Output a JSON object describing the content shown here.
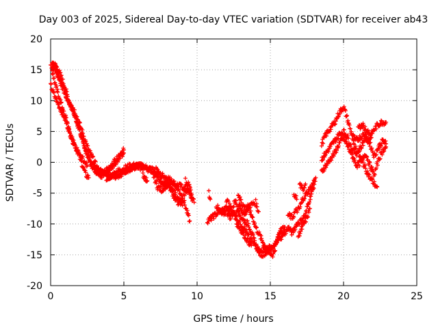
{
  "chart_data": {
    "type": "scatter",
    "title": "Day 003 of 2025, Sidereal Day-to-day VTEC variation (SDTVAR) for receiver ab43",
    "xlabel": "GPS time / hours",
    "ylabel": "SDTVAR / TECUs",
    "xlim": [
      0,
      25
    ],
    "ylim": [
      -20,
      20
    ],
    "xticks": [
      0,
      5,
      10,
      15,
      20,
      25
    ],
    "yticks": [
      -20,
      -15,
      -10,
      -5,
      0,
      5,
      10,
      15,
      20
    ],
    "grid": true,
    "marker": "+",
    "series": [
      {
        "name": "SDTVAR",
        "color": "#ff0000",
        "tracks": [
          [
            [
              0.0,
              15.8
            ],
            [
              0.3,
              15.0
            ],
            [
              0.6,
              13.5
            ],
            [
              0.9,
              11.5
            ],
            [
              1.2,
              10.0
            ],
            [
              1.5,
              8.5
            ],
            [
              1.8,
              6.5
            ],
            [
              2.1,
              4.0
            ],
            [
              2.4,
              2.0
            ],
            [
              2.7,
              0.5
            ],
            [
              3.0,
              -1.0
            ],
            [
              3.5,
              -1.5
            ],
            [
              4.0,
              -2.0
            ],
            [
              4.5,
              -2.0
            ],
            [
              5.0,
              -1.5
            ],
            [
              5.5,
              -1.0
            ],
            [
              6.0,
              -0.5
            ],
            [
              6.5,
              -1.0
            ],
            [
              7.0,
              -1.5
            ],
            [
              7.5,
              -2.0
            ],
            [
              8.0,
              -2.5
            ],
            [
              8.5,
              -3.5
            ],
            [
              9.0,
              -4.0
            ],
            [
              9.5,
              -5.0
            ],
            [
              9.7,
              -6.0
            ]
          ],
          [
            [
              0.1,
              16.3
            ],
            [
              0.4,
              15.5
            ],
            [
              0.7,
              14.0
            ],
            [
              1.0,
              12.0
            ],
            [
              1.3,
              9.5
            ],
            [
              1.6,
              8.0
            ],
            [
              1.9,
              6.0
            ],
            [
              2.2,
              3.5
            ],
            [
              2.5,
              1.0
            ],
            [
              2.8,
              -0.5
            ],
            [
              3.1,
              -1.5
            ],
            [
              3.6,
              -2.0
            ],
            [
              4.1,
              -1.0
            ],
            [
              4.6,
              0.5
            ],
            [
              5.0,
              2.0
            ]
          ],
          [
            [
              0.0,
              12.5
            ],
            [
              0.3,
              10.5
            ],
            [
              0.6,
              9.0
            ],
            [
              0.9,
              7.5
            ],
            [
              1.2,
              5.5
            ],
            [
              1.5,
              3.5
            ],
            [
              1.8,
              2.0
            ],
            [
              2.1,
              0.0
            ],
            [
              2.4,
              -2.0
            ],
            [
              2.6,
              -2.5
            ]
          ],
          [
            [
              0.2,
              16.0
            ],
            [
              0.5,
              14.5
            ],
            [
              0.8,
              12.5
            ],
            [
              1.1,
              10.5
            ],
            [
              1.4,
              9.5
            ],
            [
              1.7,
              8.0
            ],
            [
              2.0,
              6.0
            ],
            [
              2.3,
              4.0
            ],
            [
              2.5,
              2.5
            ],
            [
              2.7,
              1.5
            ],
            [
              3.0,
              0.0
            ],
            [
              3.3,
              -1.5
            ],
            [
              3.5,
              -2.5
            ]
          ],
          [
            [
              4.0,
              -2.5
            ],
            [
              4.5,
              -1.5
            ],
            [
              5.0,
              -1.0
            ],
            [
              5.5,
              -0.5
            ],
            [
              6.0,
              -0.5
            ],
            [
              6.5,
              -0.8
            ],
            [
              7.0,
              -1.2
            ],
            [
              7.4,
              -3.0
            ],
            [
              7.8,
              -3.5
            ],
            [
              8.2,
              -3.0
            ],
            [
              8.6,
              -4.0
            ],
            [
              9.0,
              -5.5
            ],
            [
              9.3,
              -8.0
            ],
            [
              9.5,
              -9.5
            ]
          ],
          [
            [
              7.2,
              -1.0
            ],
            [
              7.5,
              -2.5
            ],
            [
              7.8,
              -4.0
            ],
            [
              8.1,
              -3.5
            ],
            [
              8.4,
              -5.5
            ],
            [
              8.7,
              -6.5
            ],
            [
              9.0,
              -6.0
            ],
            [
              9.4,
              -3.5
            ],
            [
              9.6,
              -5.0
            ]
          ],
          [
            [
              7.0,
              -2.0
            ],
            [
              7.3,
              -4.0
            ],
            [
              7.6,
              -4.5
            ],
            [
              7.9,
              -3.5
            ],
            [
              8.2,
              -4.5
            ],
            [
              8.5,
              -5.0
            ],
            [
              8.8,
              -6.5
            ],
            [
              9.0,
              -7.0
            ]
          ],
          [
            [
              9.2,
              -3.0
            ],
            [
              9.4,
              -4.5
            ],
            [
              9.6,
              -5.5
            ],
            [
              9.8,
              -6.5
            ]
          ],
          [
            [
              6.3,
              -2.0
            ],
            [
              6.6,
              -3.0
            ]
          ],
          [
            [
              10.8,
              -5.0
            ],
            [
              10.9,
              -6.0
            ]
          ],
          [
            [
              10.7,
              -9.5
            ],
            [
              11.0,
              -9.0
            ],
            [
              11.5,
              -8.0
            ],
            [
              12.0,
              -7.5
            ],
            [
              12.5,
              -8.5
            ],
            [
              13.0,
              -10.0
            ],
            [
              13.3,
              -11.0
            ],
            [
              13.6,
              -12.5
            ],
            [
              14.0,
              -13.5
            ],
            [
              14.3,
              -14.5
            ],
            [
              14.6,
              -14.0
            ],
            [
              15.0,
              -14.5
            ],
            [
              15.4,
              -13.0
            ],
            [
              15.7,
              -11.0
            ],
            [
              16.0,
              -10.5
            ]
          ],
          [
            [
              11.3,
              -7.0
            ],
            [
              11.7,
              -8.5
            ],
            [
              12.0,
              -8.0
            ],
            [
              12.3,
              -9.0
            ],
            [
              12.6,
              -6.0
            ],
            [
              12.9,
              -8.5
            ],
            [
              13.2,
              -9.5
            ],
            [
              13.5,
              -10.0
            ],
            [
              13.8,
              -12.0
            ],
            [
              14.1,
              -14.0
            ],
            [
              14.4,
              -15.0
            ],
            [
              14.8,
              -14.5
            ],
            [
              15.2,
              -15.0
            ],
            [
              15.5,
              -12.5
            ],
            [
              15.8,
              -12.0
            ]
          ],
          [
            [
              12.0,
              -6.0
            ],
            [
              12.3,
              -7.5
            ],
            [
              12.6,
              -8.5
            ],
            [
              12.9,
              -7.0
            ],
            [
              13.2,
              -8.5
            ],
            [
              13.5,
              -7.5
            ],
            [
              13.8,
              -9.0
            ],
            [
              14.0,
              -10.5
            ],
            [
              14.3,
              -12.0
            ],
            [
              14.6,
              -13.5
            ],
            [
              15.0,
              -14.0
            ],
            [
              15.3,
              -13.5
            ],
            [
              15.6,
              -12.0
            ],
            [
              16.0,
              -11.5
            ],
            [
              16.2,
              -10.5
            ]
          ],
          [
            [
              12.8,
              -5.0
            ],
            [
              13.0,
              -6.5
            ],
            [
              13.3,
              -7.5
            ],
            [
              13.6,
              -7.0
            ],
            [
              14.0,
              -6.5
            ],
            [
              14.2,
              -8.0
            ]
          ],
          [
            [
              12.7,
              -10.0
            ],
            [
              13.0,
              -11.0
            ],
            [
              13.4,
              -12.5
            ],
            [
              13.7,
              -13.5
            ]
          ],
          [
            [
              16.2,
              -8.5
            ],
            [
              16.5,
              -9.0
            ],
            [
              16.7,
              -8.0
            ],
            [
              17.0,
              -7.5
            ],
            [
              17.2,
              -6.0
            ],
            [
              17.5,
              -5.0
            ],
            [
              17.8,
              -4.0
            ],
            [
              18.0,
              -3.0
            ]
          ],
          [
            [
              16.2,
              -10.5
            ],
            [
              16.5,
              -11.5
            ],
            [
              16.8,
              -10.0
            ],
            [
              17.1,
              -9.5
            ],
            [
              17.4,
              -8.5
            ],
            [
              17.6,
              -6.5
            ],
            [
              17.9,
              -4.5
            ],
            [
              18.1,
              -2.5
            ]
          ],
          [
            [
              16.9,
              -12.0
            ],
            [
              17.1,
              -11.0
            ],
            [
              17.3,
              -10.0
            ],
            [
              17.5,
              -9.0
            ],
            [
              17.7,
              -7.5
            ]
          ],
          [
            [
              17.0,
              -3.5
            ],
            [
              17.2,
              -4.5
            ],
            [
              17.4,
              -3.5
            ]
          ],
          [
            [
              16.6,
              -5.0
            ],
            [
              16.8,
              -6.0
            ]
          ],
          [
            [
              18.5,
              3.0
            ],
            [
              18.8,
              4.5
            ],
            [
              19.1,
              5.5
            ],
            [
              19.4,
              6.5
            ],
            [
              19.7,
              8.0
            ],
            [
              20.0,
              9.0
            ],
            [
              20.2,
              7.5
            ],
            [
              20.5,
              5.0
            ],
            [
              20.8,
              3.5
            ],
            [
              21.1,
              4.0
            ],
            [
              21.4,
              4.5
            ],
            [
              21.7,
              3.5
            ],
            [
              22.0,
              5.0
            ],
            [
              22.3,
              6.0
            ],
            [
              22.6,
              6.5
            ],
            [
              22.9,
              6.5
            ]
          ],
          [
            [
              18.5,
              0.5
            ],
            [
              18.8,
              1.5
            ],
            [
              19.1,
              2.5
            ],
            [
              19.4,
              3.5
            ],
            [
              19.7,
              4.5
            ],
            [
              20.0,
              5.0
            ],
            [
              20.3,
              4.0
            ],
            [
              20.6,
              2.0
            ],
            [
              20.9,
              1.5
            ],
            [
              21.2,
              2.5
            ],
            [
              21.5,
              4.0
            ],
            [
              21.8,
              3.0
            ],
            [
              22.1,
              1.0
            ],
            [
              22.4,
              2.5
            ],
            [
              22.7,
              3.5
            ],
            [
              22.9,
              3.0
            ]
          ],
          [
            [
              18.5,
              -1.5
            ],
            [
              18.8,
              -0.5
            ],
            [
              19.1,
              0.5
            ],
            [
              19.4,
              1.5
            ],
            [
              19.7,
              3.0
            ],
            [
              20.0,
              4.0
            ],
            [
              20.3,
              2.5
            ],
            [
              20.6,
              1.0
            ],
            [
              20.9,
              -0.5
            ],
            [
              21.2,
              0.0
            ],
            [
              21.5,
              1.5
            ],
            [
              21.8,
              -0.5
            ],
            [
              22.1,
              -2.0
            ],
            [
              22.4,
              0.5
            ],
            [
              22.7,
              2.0
            ],
            [
              22.9,
              2.5
            ]
          ],
          [
            [
              20.6,
              3.5
            ],
            [
              20.9,
              2.0
            ],
            [
              21.2,
              0.5
            ],
            [
              21.5,
              -1.0
            ],
            [
              21.8,
              -2.5
            ],
            [
              22.1,
              -3.5
            ],
            [
              22.3,
              -4.0
            ]
          ],
          [
            [
              21.0,
              5.5
            ],
            [
              21.3,
              6.0
            ],
            [
              21.6,
              5.0
            ],
            [
              21.9,
              4.0
            ]
          ],
          [
            [
              0.1,
              14.5
            ],
            [
              0.4,
              12.0
            ],
            [
              0.7,
              9.5
            ],
            [
              1.0,
              7.5
            ],
            [
              1.3,
              5.0
            ],
            [
              1.6,
              3.0
            ],
            [
              1.9,
              1.5
            ],
            [
              2.2,
              0.5
            ],
            [
              2.5,
              -0.5
            ]
          ],
          [
            [
              3.0,
              -1.0
            ],
            [
              3.3,
              -1.5
            ],
            [
              3.6,
              -1.8
            ],
            [
              4.0,
              -1.0
            ],
            [
              4.3,
              0.0
            ],
            [
              4.7,
              1.0
            ],
            [
              5.0,
              1.5
            ]
          ],
          [
            [
              3.8,
              -2.5
            ],
            [
              4.2,
              -2.5
            ],
            [
              4.8,
              -2.0
            ],
            [
              5.3,
              -1.2
            ],
            [
              5.8,
              -0.8
            ],
            [
              6.2,
              -1.0
            ]
          ]
        ]
      }
    ]
  }
}
